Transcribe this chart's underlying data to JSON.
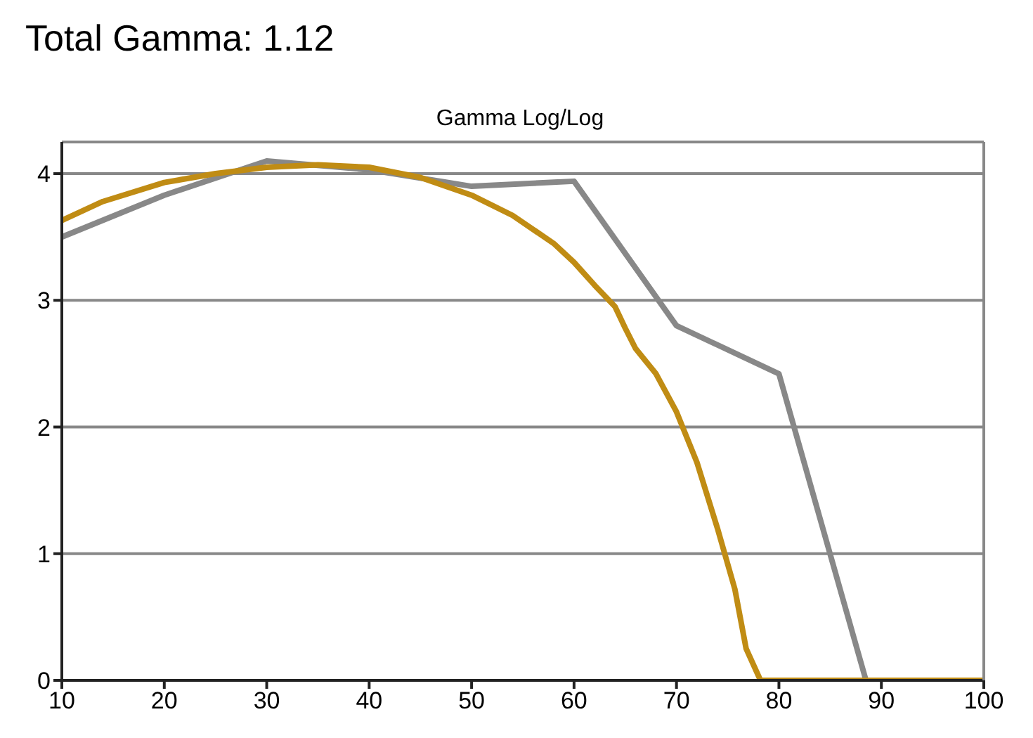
{
  "chart_data": {
    "type": "line",
    "title": "Total Gamma: 1.12",
    "subtitle": "Gamma Log/Log",
    "xlim": [
      10,
      100
    ],
    "xticks": [
      10,
      20,
      30,
      40,
      50,
      60,
      70,
      80,
      90,
      100
    ],
    "ylim": [
      0,
      4.25
    ],
    "yticks": [
      0,
      1,
      2,
      3,
      4
    ],
    "grid": "y",
    "marker": "none",
    "line_style": "solid",
    "series": [
      {
        "color": "#888888",
        "x": [
          10,
          20,
          30,
          40,
          50,
          60,
          70,
          80,
          88.5,
          100
        ],
        "values": [
          3.5,
          3.83,
          4.1,
          4.03,
          3.9,
          3.94,
          2.8,
          2.42,
          0,
          0
        ]
      },
      {
        "color": "#c08c14",
        "x": [
          10,
          14,
          20,
          25,
          30,
          35,
          40,
          45,
          50,
          54,
          58,
          60,
          62,
          64,
          65,
          66,
          68,
          70,
          72,
          74,
          75.7,
          76.8,
          78.2,
          100
        ],
        "values": [
          3.63,
          3.78,
          3.93,
          4.0,
          4.05,
          4.07,
          4.05,
          3.97,
          3.83,
          3.67,
          3.45,
          3.3,
          3.12,
          2.95,
          2.78,
          2.62,
          2.42,
          2.12,
          1.72,
          1.2,
          0.72,
          0.25,
          0,
          0
        ]
      }
    ]
  }
}
